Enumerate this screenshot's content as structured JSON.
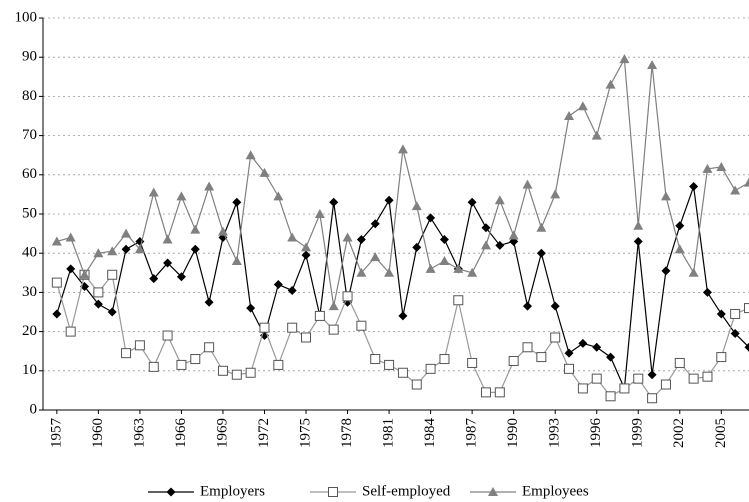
{
  "chart_data": {
    "type": "line",
    "x": [
      1957,
      1958,
      1959,
      1960,
      1961,
      1962,
      1963,
      1964,
      1965,
      1966,
      1967,
      1968,
      1969,
      1970,
      1971,
      1972,
      1973,
      1974,
      1975,
      1976,
      1977,
      1978,
      1979,
      1980,
      1981,
      1982,
      1983,
      1984,
      1985,
      1986,
      1987,
      1988,
      1989,
      1990,
      1991,
      1992,
      1993,
      1994,
      1995,
      1996,
      1997,
      1998,
      1999,
      2000,
      2001,
      2002,
      2003,
      2004,
      2005,
      2006,
      2007
    ],
    "series": [
      {
        "name": "Employers",
        "color": "#000000",
        "marker": "diamond",
        "values": [
          24.5,
          36,
          31.5,
          27,
          25,
          41,
          43,
          33.5,
          37.5,
          34,
          41,
          27.5,
          44,
          53,
          26,
          19,
          32,
          30.5,
          39.5,
          24,
          53,
          27.5,
          43.5,
          47.5,
          53.5,
          24,
          41.5,
          49,
          43.5,
          36,
          53,
          46.5,
          42,
          43,
          26.5,
          40,
          26.5,
          14.5,
          17,
          16,
          13.5,
          5.5,
          43,
          9,
          35.5,
          47,
          57,
          30,
          24.5,
          19.5,
          16
        ]
      },
      {
        "name": "Self-employed",
        "color": "#999999",
        "marker": "square",
        "values": [
          32.5,
          20,
          34.5,
          30,
          34.5,
          14.5,
          16.5,
          11,
          19,
          11.5,
          13,
          16,
          10,
          9,
          9.5,
          21,
          11.5,
          21,
          18.5,
          24,
          20.5,
          29,
          21.5,
          13,
          11.5,
          9.5,
          6.5,
          10.5,
          13,
          28,
          12,
          4.5,
          4.5,
          12.5,
          16,
          13.5,
          18.5,
          10.5,
          5.5,
          8,
          3.5,
          5.5,
          8,
          3,
          6.5,
          12,
          8,
          8.5,
          13.5,
          24.5,
          26
        ]
      },
      {
        "name": "Employees",
        "color": "#808080",
        "marker": "triangle",
        "values": [
          43,
          44,
          34.5,
          40,
          40.5,
          45,
          41,
          55.5,
          43.5,
          54.5,
          46,
          57,
          45.5,
          38,
          65,
          60.5,
          54.5,
          44,
          41.5,
          50,
          26.5,
          44,
          35,
          39,
          35,
          66.5,
          52,
          36,
          38,
          36,
          35,
          42,
          53.5,
          44.5,
          57.5,
          46.5,
          55,
          75,
          77.5,
          70,
          83,
          89.5,
          47,
          88,
          54.5,
          41,
          35,
          61.5,
          62,
          56,
          58
        ]
      }
    ],
    "xlim": [
      1956,
      2007
    ],
    "xticks": [
      1957,
      1960,
      1963,
      1966,
      1969,
      1972,
      1975,
      1978,
      1981,
      1984,
      1987,
      1990,
      1993,
      1996,
      1999,
      2002,
      2005
    ],
    "ylim": [
      0,
      100
    ],
    "yticks": [
      0,
      10,
      20,
      30,
      40,
      50,
      60,
      70,
      80,
      90,
      100
    ],
    "grid": true
  }
}
